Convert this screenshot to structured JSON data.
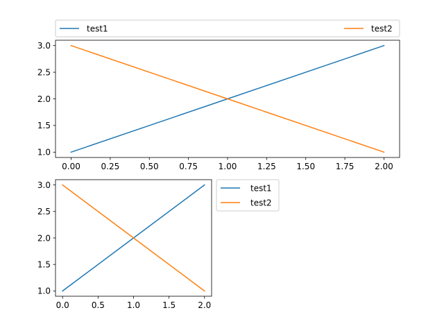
{
  "chart_data": [
    {
      "type": "line",
      "x": [
        0,
        1,
        2
      ],
      "series": [
        {
          "name": "test1",
          "values": [
            1,
            2,
            3
          ],
          "color": "#1f77b4"
        },
        {
          "name": "test2",
          "values": [
            3,
            2,
            1
          ],
          "color": "#ff7f0e"
        }
      ],
      "xlim": [
        -0.1,
        2.1
      ],
      "ylim": [
        0.9,
        3.1
      ],
      "xticks": [
        0.0,
        0.25,
        0.5,
        0.75,
        1.0,
        1.25,
        1.5,
        1.75,
        2.0
      ],
      "xtick_labels": [
        "0.00",
        "0.25",
        "0.50",
        "0.75",
        "1.00",
        "1.25",
        "1.50",
        "1.75",
        "2.00"
      ],
      "yticks": [
        1.0,
        1.5,
        2.0,
        2.5,
        3.0
      ],
      "ytick_labels": [
        "1.0",
        "1.5",
        "2.0",
        "2.5",
        "3.0"
      ],
      "title": "",
      "xlabel": "",
      "ylabel": "",
      "grid": false,
      "legend_placement": "above plot, expanded across two columns"
    },
    {
      "type": "line",
      "x": [
        0,
        1,
        2
      ],
      "series": [
        {
          "name": "test1",
          "values": [
            1,
            2,
            3
          ],
          "color": "#1f77b4"
        },
        {
          "name": "test2",
          "values": [
            3,
            2,
            1
          ],
          "color": "#ff7f0e"
        }
      ],
      "xlim": [
        -0.1,
        2.1
      ],
      "ylim": [
        0.9,
        3.1
      ],
      "xticks": [
        0.0,
        0.5,
        1.0,
        1.5,
        2.0
      ],
      "xtick_labels": [
        "0.0",
        "0.5",
        "1.0",
        "1.5",
        "2.0"
      ],
      "yticks": [
        1.0,
        1.5,
        2.0,
        2.5,
        3.0
      ],
      "ytick_labels": [
        "1.0",
        "1.5",
        "2.0",
        "2.5",
        "3.0"
      ],
      "title": "",
      "xlabel": "",
      "ylabel": "",
      "grid": false,
      "legend_placement": "outside right, upper"
    }
  ]
}
